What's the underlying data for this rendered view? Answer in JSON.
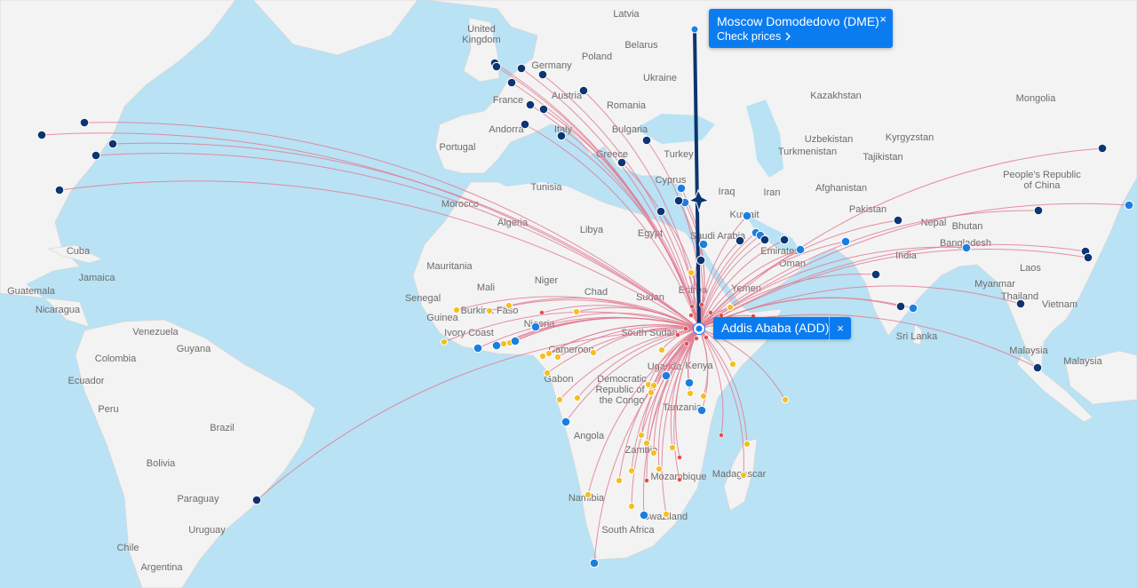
{
  "popups": {
    "destination": {
      "title": "Moscow Domodedovo (DME)",
      "link": "Check prices",
      "close": "×"
    },
    "origin": {
      "title": "Addis Ababa (ADD)",
      "close": "×"
    }
  },
  "country_labels": [
    "Latvia",
    "United",
    "Kingdom",
    "Belarus",
    "Germany",
    "Poland",
    "Ukraine",
    "France",
    "Austria",
    "Romania",
    "Kazakhstan",
    "Mongolia",
    "Andorra",
    "Italy",
    "Bulgaria",
    "Portugal",
    "Uzbekistan",
    "Kyrgyzstan",
    "Turkey",
    "Greece",
    "Turkmenistan",
    "Tajikistan",
    "Tunisia",
    "Cyprus",
    "Iraq",
    "Iran",
    "Afghanistan",
    "People's Republic",
    "of China",
    "Morocco",
    "Kuwait",
    "Pakistan",
    "Algeria",
    "Libya",
    "Egypt",
    "Saudi Arabia",
    "Nepal",
    "Bhutan",
    "Bangladesh",
    "Emirates",
    "Oman",
    "India",
    "Mauritania",
    "Niger",
    "Mali",
    "Chad",
    "Laos",
    "Myanmar",
    "Yemen",
    "Sudan",
    "Eritrea",
    "Senegal",
    "Thailand",
    "Vietnam",
    "Guinea",
    "Burkina Faso",
    "Nigeria",
    "South Sudan",
    "Ivory Coast",
    "Sri Lanka",
    "Cameroon",
    "Malaysia",
    "Malaysia",
    "Uganda",
    "Kenya",
    "Gabon",
    "Democratic",
    "Republic of",
    "the Congo",
    "Tanzania",
    "Angola",
    "Zambia",
    "Mozambique",
    "Madagascar",
    "Namibia",
    "Swaziland",
    "South Africa",
    "Venezuela",
    "Guyana",
    "Colombia",
    "Ecuador",
    "Peru",
    "Brazil",
    "Bolivia",
    "Paraguay",
    "Chile",
    "Uruguay",
    "Argentina",
    "Cuba",
    "Jamaica",
    "Guatemala",
    "Nicaragua"
  ]
}
